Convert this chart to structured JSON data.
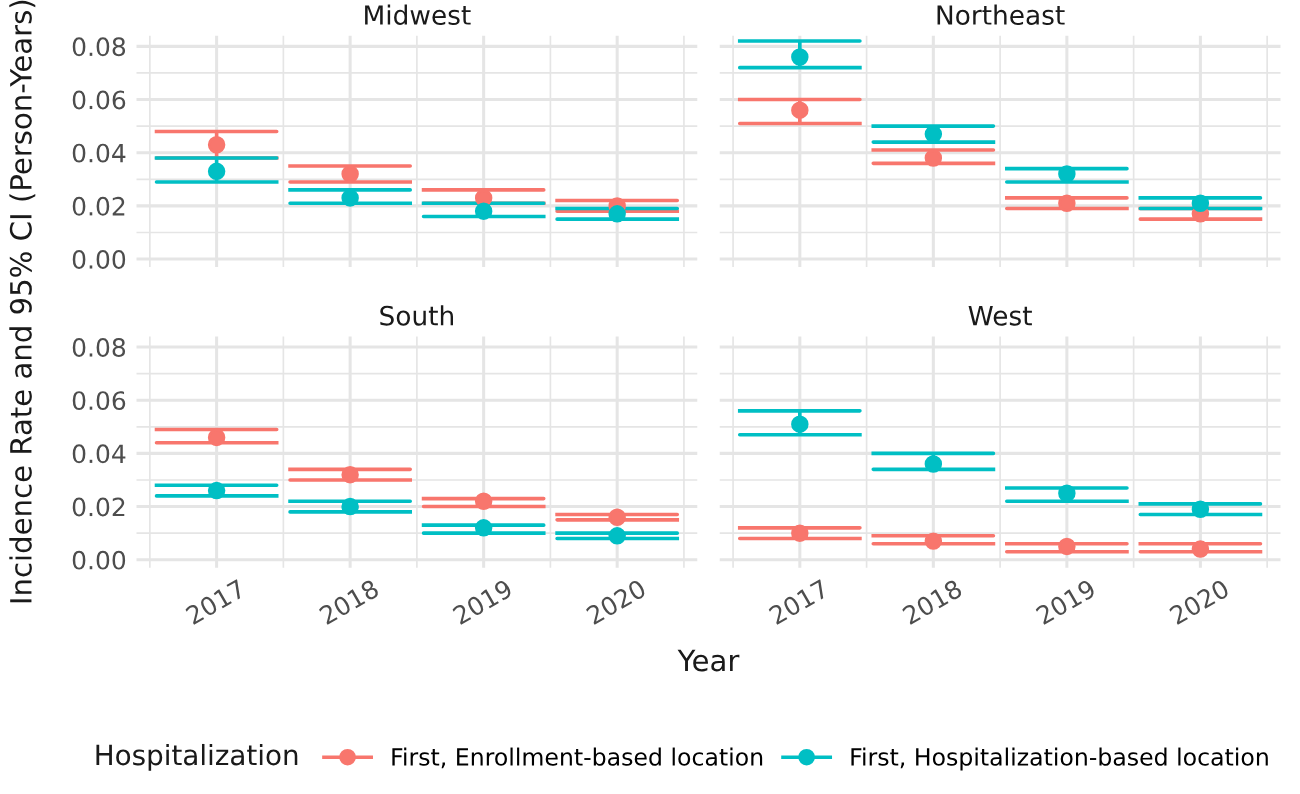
{
  "chart_data": [
    {
      "type": "scatter",
      "title": "Midwest",
      "ylabel": "Incidence Rate and 95% CI (Person-Years)",
      "categories": [
        "2017",
        "2018",
        "2019",
        "2020"
      ],
      "ylim": [
        -0.003,
        0.084
      ],
      "yticks": [
        {
          "value": 0,
          "label": "0.00"
        },
        {
          "value": 0.02,
          "label": "0.02"
        },
        {
          "value": 0.04,
          "label": "0.04"
        },
        {
          "value": 0.06,
          "label": "0.06"
        },
        {
          "value": 0.08,
          "label": "0.08"
        }
      ],
      "grid": true,
      "marker": "circle",
      "tick_labels": "y",
      "legend": "bottom",
      "legend_title": "Hospitalization",
      "series": [
        {
          "name": "First, Enrollment-based location",
          "color": "#f8766d",
          "values": [
            0.043,
            0.032,
            0.023,
            0.02
          ],
          "errors": [
            [
              0.038,
              0.048
            ],
            [
              0.029,
              0.035
            ],
            [
              0.021,
              0.026
            ],
            [
              0.018,
              0.022
            ]
          ]
        },
        {
          "name": "First, Hospitalization-based location",
          "color": "#00bfc4",
          "values": [
            0.033,
            0.023,
            0.018,
            0.017
          ],
          "errors": [
            [
              0.029,
              0.038
            ],
            [
              0.021,
              0.026
            ],
            [
              0.016,
              0.021
            ],
            [
              0.015,
              0.019
            ]
          ]
        }
      ]
    },
    {
      "type": "scatter",
      "title": "Northeast",
      "categories": [
        "2017",
        "2018",
        "2019",
        "2020"
      ],
      "ylim": [
        -0.003,
        0.084
      ],
      "yticks": [
        {
          "value": 0,
          "label": null
        },
        {
          "value": 0.02,
          "label": null
        },
        {
          "value": 0.04,
          "label": null
        },
        {
          "value": 0.06,
          "label": null
        },
        {
          "value": 0.08,
          "label": null
        }
      ],
      "grid": true,
      "marker": "circle",
      "tick_labels": false,
      "series": [
        {
          "color": "#f8766d",
          "values": [
            0.056,
            0.038,
            0.021,
            0.017
          ],
          "errors": [
            [
              0.051,
              0.06
            ],
            [
              0.036,
              0.041
            ],
            [
              0.019,
              0.023
            ],
            [
              0.015,
              0.019
            ]
          ]
        },
        {
          "color": "#00bfc4",
          "values": [
            0.076,
            0.047,
            0.032,
            0.021
          ],
          "errors": [
            [
              0.072,
              0.082
            ],
            [
              0.044,
              0.05
            ],
            [
              0.029,
              0.034
            ],
            [
              0.019,
              0.023
            ]
          ]
        }
      ]
    },
    {
      "type": "scatter",
      "title": "South",
      "xlabel": "Year",
      "categories": [
        "2017",
        "2018",
        "2019",
        "2020"
      ],
      "ylim": [
        -0.003,
        0.084
      ],
      "yticks": [
        {
          "value": 0,
          "label": "0.00"
        },
        {
          "value": 0.02,
          "label": "0.02"
        },
        {
          "value": 0.04,
          "label": "0.04"
        },
        {
          "value": 0.06,
          "label": "0.06"
        },
        {
          "value": 0.08,
          "label": "0.08"
        }
      ],
      "grid": true,
      "marker": "circle",
      "series": [
        {
          "color": "#f8766d",
          "values": [
            0.046,
            0.032,
            0.022,
            0.016
          ],
          "errors": [
            [
              0.044,
              0.049
            ],
            [
              0.03,
              0.034
            ],
            [
              0.02,
              0.023
            ],
            [
              0.015,
              0.017
            ]
          ]
        },
        {
          "color": "#00bfc4",
          "values": [
            0.026,
            0.02,
            0.012,
            0.009
          ],
          "errors": [
            [
              0.024,
              0.028
            ],
            [
              0.018,
              0.022
            ],
            [
              0.01,
              0.013
            ],
            [
              0.008,
              0.01
            ]
          ]
        }
      ]
    },
    {
      "type": "scatter",
      "title": "West",
      "categories": [
        "2017",
        "2018",
        "2019",
        "2020"
      ],
      "ylim": [
        -0.003,
        0.084
      ],
      "yticks": [
        {
          "value": 0,
          "label": null
        },
        {
          "value": 0.02,
          "label": null
        },
        {
          "value": 0.04,
          "label": null
        },
        {
          "value": 0.06,
          "label": null
        },
        {
          "value": 0.08,
          "label": null
        }
      ],
      "grid": true,
      "marker": "circle",
      "tick_labels": "x",
      "series": [
        {
          "color": "#f8766d",
          "values": [
            0.01,
            0.007,
            0.005,
            0.004
          ],
          "errors": [
            [
              0.008,
              0.012
            ],
            [
              0.006,
              0.009
            ],
            [
              0.003,
              0.006
            ],
            [
              0.003,
              0.006
            ]
          ]
        },
        {
          "color": "#00bfc4",
          "values": [
            0.051,
            0.036,
            0.025,
            0.019
          ],
          "errors": [
            [
              0.047,
              0.056
            ],
            [
              0.034,
              0.04
            ],
            [
              0.022,
              0.027
            ],
            [
              0.017,
              0.021
            ]
          ]
        }
      ]
    }
  ]
}
